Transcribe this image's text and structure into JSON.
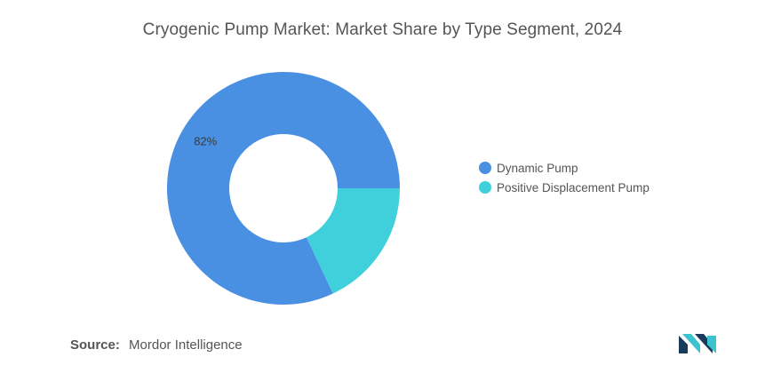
{
  "chart_data": {
    "type": "pie",
    "title": "Cryogenic Pump Market: Market Share by Type Segment, 2024",
    "donut": true,
    "legend_position": "right",
    "slices": [
      {
        "name": "Dynamic Pump",
        "value": 82,
        "label": "82%",
        "color": "#4a90e2"
      },
      {
        "name": "Positive Displacement Pump",
        "value": 18,
        "label": "",
        "color": "#40d0dc"
      }
    ]
  },
  "footer": {
    "source_label": "Source:",
    "source_value": "Mordor Intelligence"
  },
  "logo": {
    "icon": "mordor-intelligence-logo-icon",
    "colors": [
      "#1a3a5c",
      "#3bc4cf"
    ]
  }
}
